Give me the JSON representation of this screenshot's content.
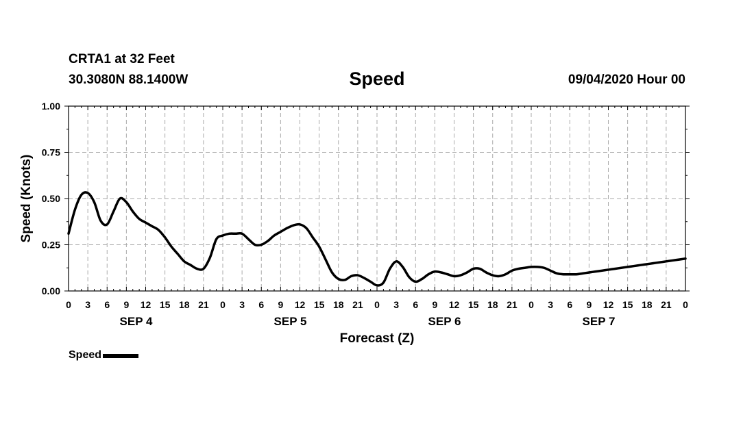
{
  "header": {
    "station": "CRTA1 at 32 Feet",
    "coordinates": "30.3080N 88.1400W",
    "title": "Speed",
    "datetime": "09/04/2020 Hour 00"
  },
  "legend": {
    "label": "Speed",
    "color": "#000000"
  },
  "chart_data": {
    "type": "line",
    "title": "Speed",
    "xlabel": "Forecast (Z)",
    "ylabel": "Speed (Knots)",
    "ylim": [
      0,
      1.0
    ],
    "xlim_hours": [
      0,
      96
    ],
    "grid": true,
    "legend_position": "bottom-left",
    "y_ticks": [
      "0.00",
      "0.25",
      "0.50",
      "0.75",
      "1.00"
    ],
    "x_tick_labels": [
      "0",
      "3",
      "6",
      "9",
      "12",
      "15",
      "18",
      "21",
      "0",
      "3",
      "6",
      "9",
      "12",
      "15",
      "18",
      "21",
      "0",
      "3",
      "6",
      "9",
      "12",
      "15",
      "18",
      "21",
      "0",
      "3",
      "6",
      "9",
      "12",
      "15",
      "18",
      "21",
      "0"
    ],
    "day_labels": [
      "SEP 4",
      "SEP 5",
      "SEP 6",
      "SEP 7"
    ],
    "series": [
      {
        "name": "Speed",
        "color": "#000000",
        "x": [
          0,
          1,
          2,
          3,
          4,
          5,
          6,
          7,
          8,
          9,
          10,
          11,
          12,
          13,
          14,
          15,
          16,
          17,
          18,
          19,
          20,
          21,
          22,
          23,
          24,
          25,
          26,
          27,
          28,
          29,
          30,
          31,
          32,
          33,
          34,
          35,
          36,
          37,
          38,
          39,
          40,
          41,
          42,
          43,
          44,
          45,
          46,
          47,
          48,
          49,
          50,
          51,
          52,
          53,
          54,
          55,
          56,
          57,
          58,
          59,
          60,
          61,
          62,
          63,
          64,
          65,
          66,
          67,
          68,
          69,
          70,
          71,
          72,
          73,
          74,
          75,
          76,
          77,
          78,
          79,
          80,
          81,
          82,
          83,
          84,
          85,
          86,
          87,
          88,
          89,
          90,
          91,
          92,
          93,
          94,
          95,
          96
        ],
        "values": [
          0.31,
          0.44,
          0.52,
          0.53,
          0.48,
          0.38,
          0.36,
          0.43,
          0.5,
          0.48,
          0.43,
          0.39,
          0.37,
          0.35,
          0.33,
          0.29,
          0.24,
          0.2,
          0.16,
          0.14,
          0.12,
          0.12,
          0.18,
          0.28,
          0.3,
          0.31,
          0.31,
          0.31,
          0.28,
          0.25,
          0.25,
          0.27,
          0.3,
          0.32,
          0.34,
          0.355,
          0.36,
          0.34,
          0.29,
          0.24,
          0.17,
          0.1,
          0.065,
          0.06,
          0.08,
          0.085,
          0.07,
          0.05,
          0.03,
          0.045,
          0.12,
          0.16,
          0.13,
          0.075,
          0.05,
          0.065,
          0.09,
          0.105,
          0.1,
          0.09,
          0.08,
          0.085,
          0.1,
          0.12,
          0.12,
          0.1,
          0.085,
          0.08,
          0.09,
          0.11,
          0.12,
          0.125,
          0.13,
          0.13,
          0.125,
          0.11,
          0.095,
          0.09,
          0.09,
          0.09,
          0.095,
          0.1,
          0.105,
          0.11,
          0.115,
          0.12,
          0.125,
          0.13,
          0.135,
          0.14,
          0.145,
          0.15,
          0.155,
          0.16,
          0.165,
          0.17,
          0.175
        ]
      }
    ]
  }
}
